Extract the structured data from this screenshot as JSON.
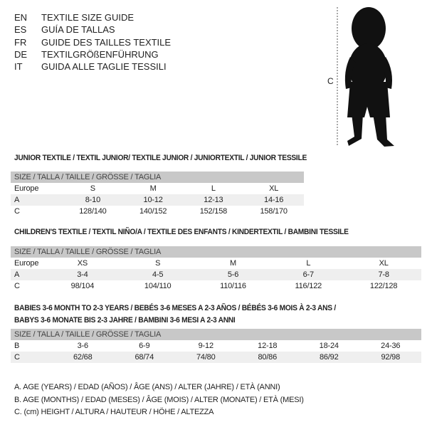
{
  "titles": [
    {
      "code": "EN",
      "text": "TEXTILE SIZE GUIDE"
    },
    {
      "code": "ES",
      "text": "GUÍA DE TALLAS"
    },
    {
      "code": "FR",
      "text": "GUIDE DES TAILLES TEXTILE"
    },
    {
      "code": "DE",
      "text": "TEXTILGRÖßENFÜHRUNG"
    },
    {
      "code": "IT",
      "text": "GUIDA ALLE TAGLIE TESSILI"
    }
  ],
  "figure": {
    "label": "C"
  },
  "junior": {
    "title": "JUNIOR TEXTILE / TEXTIL JUNIOR/ TEXTILE JUNIOR / JUNIORTEXTIL / JUNIOR TESSILE",
    "header": "SIZE / TALLA / TAILLE / GRÖSSE / TAGLIA",
    "rows": [
      [
        "Europe",
        "S",
        "M",
        "L",
        "XL"
      ],
      [
        "A",
        "8-10",
        "10-12",
        "12-13",
        "14-16"
      ],
      [
        "C",
        "128/140",
        "140/152",
        "152/158",
        "158/170"
      ]
    ]
  },
  "children": {
    "title": "CHILDREN'S TEXTILE / TEXTIL NIÑO/A / TEXTILE DES ENFANTS / KINDERTEXTIL / BAMBINI TESSILE",
    "header": "SIZE / TALLA / TAILLE / GRÖSSE / TAGLIA",
    "rows": [
      [
        "Europe",
        "XS",
        "S",
        "M",
        "L",
        "XL"
      ],
      [
        "A",
        "3-4",
        "4-5",
        "5-6",
        "6-7",
        "7-8"
      ],
      [
        "C",
        "98/104",
        "104/110",
        "110/116",
        "116/122",
        "122/128"
      ]
    ]
  },
  "babies": {
    "title_line1": "BABIES 3-6 MONTH TO 2-3 YEARS / BEBÉS 3-6 MESES A 2-3 AÑOS / BÉBÉS 3-6 MOIS À 2-3 ANS /",
    "title_line2": "BABYS 3-6 MONATE BIS 2-3 JAHRE / BAMBINI 3-6 MESI A 2-3 ANNI",
    "header": "SIZE / TALLA / TAILLE / GRÖSSE / TAGLIA",
    "rows": [
      [
        "B",
        "3-6",
        "6-9",
        "9-12",
        "12-18",
        "18-24",
        "24-36"
      ],
      [
        "C",
        "62/68",
        "68/74",
        "74/80",
        "80/86",
        "86/92",
        "92/98"
      ]
    ]
  },
  "legend": [
    "A. AGE (YEARS) / EDAD (AÑOS) / ÂGE (ANS) / ALTER (JAHRE) / ETÀ (ANNI)",
    "B. AGE (MONTHS) / EDAD (MESES) / ÂGE (MOIS) / ALTER (MONATE) / ETÀ (MESI)",
    "C. (cm) HEIGHT / ALTURA / HAUTEUR / HÖHE / ALTEZZA"
  ]
}
